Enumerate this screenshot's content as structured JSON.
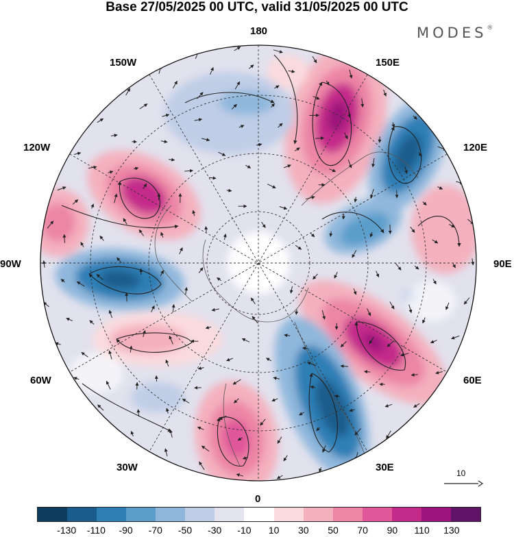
{
  "title": "Base 27/05/2025 00 UTC, valid 31/05/2025 00 UTC",
  "brand": {
    "name": "MODES",
    "mark": "®"
  },
  "longitudes": {
    "lon_180": "180",
    "lon_150e": "150E",
    "lon_120e": "120E",
    "lon_90e": "90E",
    "lon_60e": "60E",
    "lon_30e": "30E",
    "lon_0": "0",
    "lon_30w": "30W",
    "lon_60w": "60W",
    "lon_90w": "90W",
    "lon_120w": "120W",
    "lon_150w": "150W"
  },
  "reference_vector": {
    "value": "10"
  },
  "colorbar": {
    "colors": [
      "#0d3d5e",
      "#1a5d8c",
      "#2f7fb6",
      "#5a9dcb",
      "#8fb7dc",
      "#bfcde6",
      "#e4e4f0",
      "#ffffff",
      "#fadadd",
      "#f4b0bd",
      "#ec85a6",
      "#e0579a",
      "#c42a8a",
      "#9b137c",
      "#611467"
    ],
    "labels": [
      "-130",
      "-110",
      "-90",
      "-70",
      "-50",
      "-30",
      "-10",
      "10",
      "30",
      "50",
      "70",
      "90",
      "110",
      "130"
    ]
  }
}
